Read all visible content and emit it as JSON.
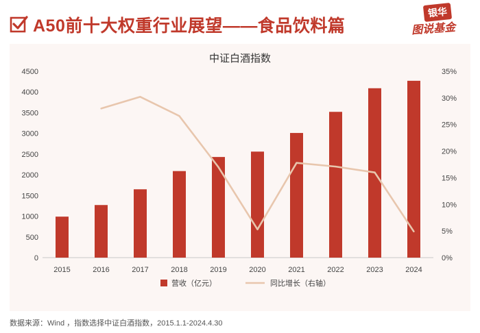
{
  "header": {
    "title": "A50前十大权重行业展望——食品饮料篇",
    "logo_line1": "银华",
    "logo_line2": "图说基金",
    "accent_color": "#c0392b",
    "check_icon": "checkbox-checked-icon"
  },
  "chart_data": {
    "type": "bar",
    "title": "中证白酒指数",
    "categories": [
      "2015",
      "2016",
      "2017",
      "2018",
      "2019",
      "2020",
      "2021",
      "2022",
      "2023",
      "2024"
    ],
    "series": [
      {
        "name": "营收（亿元）",
        "type": "bar",
        "axis": "left",
        "color": "#c0392b",
        "values": [
          990,
          1270,
          1650,
          2090,
          2430,
          2560,
          3010,
          3520,
          4090,
          4270
        ]
      },
      {
        "name": "同比增长（右轴）",
        "type": "line",
        "axis": "right",
        "color": "#e8c6ad",
        "values": [
          null,
          28.0,
          30.2,
          26.6,
          17.0,
          5.3,
          17.8,
          17.1,
          16.0,
          4.9
        ]
      }
    ],
    "y_left": {
      "min": 0,
      "max": 4500,
      "ticks": [
        "0",
        "500",
        "1000",
        "1500",
        "2000",
        "2500",
        "3000",
        "3500",
        "4000",
        "4500"
      ]
    },
    "y_right": {
      "min": 0,
      "max": 35,
      "ticks": [
        "0%",
        "5%",
        "10%",
        "15%",
        "20%",
        "25%",
        "30%",
        "35%"
      ]
    },
    "grid": false,
    "legend_position": "bottom"
  },
  "footer": {
    "source": "数据来源：Wind ，指数选择中证白酒指数，2015.1.1-2024.4.30"
  }
}
